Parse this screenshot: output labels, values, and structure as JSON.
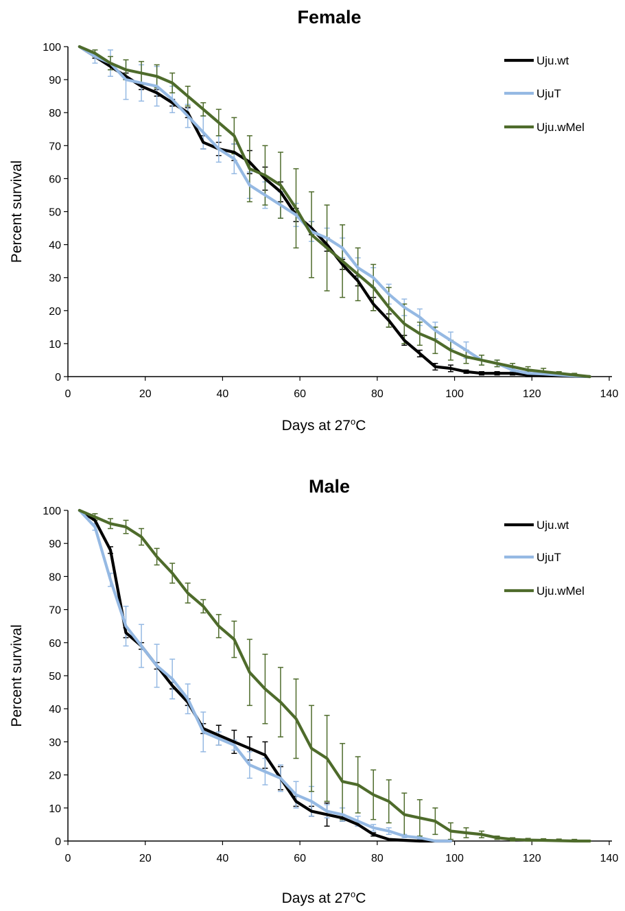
{
  "chart_data": [
    {
      "type": "line",
      "title": "Female",
      "xlabel": "Days at 27",
      "xlabel_sup": "o",
      "xlabel_tail": "C",
      "ylabel": "Percent survival",
      "xlim": [
        0,
        140
      ],
      "ylim": [
        0,
        100
      ],
      "x_ticks": [
        0,
        20,
        40,
        60,
        80,
        100,
        120,
        140
      ],
      "y_ticks": [
        0,
        10,
        20,
        30,
        40,
        50,
        60,
        70,
        80,
        90,
        100
      ],
      "grid": false,
      "legend_position": "top-right",
      "series": [
        {
          "name": "Uju.wt",
          "color": "#000000",
          "x": [
            3,
            7,
            11,
            15,
            19,
            23,
            27,
            31,
            35,
            39,
            43,
            47,
            51,
            55,
            59,
            63,
            67,
            71,
            75,
            79,
            83,
            87,
            91,
            95,
            99,
            103,
            107,
            111,
            115,
            119,
            123,
            127,
            131,
            135
          ],
          "y": [
            100,
            97,
            94,
            91,
            88,
            86,
            83,
            80,
            71,
            69,
            68,
            65,
            60,
            56,
            49,
            45,
            40,
            34,
            29,
            22,
            17,
            11,
            7,
            3,
            2.5,
            1.5,
            1,
            1,
            1,
            0.5,
            0.3,
            0.2,
            0.1,
            0
          ],
          "err": [
            0,
            0.5,
            1,
            1,
            1,
            1,
            1,
            1.5,
            2,
            2,
            2.5,
            3.5,
            3.5,
            3,
            2,
            2,
            2,
            1.5,
            1.5,
            2,
            2,
            1.5,
            1,
            1,
            1,
            0.5,
            0.5,
            0.5,
            0.5,
            0.5,
            0,
            0,
            0,
            0
          ]
        },
        {
          "name": "UjuT",
          "color": "#95b9e3",
          "x": [
            3,
            7,
            11,
            15,
            19,
            23,
            27,
            31,
            35,
            39,
            43,
            47,
            51,
            55,
            59,
            63,
            67,
            71,
            75,
            79,
            83,
            87,
            91,
            95,
            99,
            103,
            107,
            111,
            115,
            119,
            123,
            127,
            131,
            135
          ],
          "y": [
            100,
            97,
            95,
            90,
            89,
            88,
            84,
            79,
            74,
            69,
            66,
            58,
            55,
            52,
            49,
            44,
            42,
            39,
            33,
            30,
            25,
            21,
            18,
            14,
            11,
            8,
            5,
            4,
            2,
            1,
            0.8,
            0.5,
            0.2,
            0
          ],
          "err": [
            0,
            2,
            4,
            6,
            5.5,
            6,
            4,
            3.5,
            5,
            4,
            4.5,
            4,
            4,
            4,
            3.5,
            3,
            3,
            3,
            3,
            3,
            3,
            2.5,
            2.5,
            2.5,
            2.5,
            2.5,
            1.5,
            1,
            0.5,
            0.5,
            0,
            0,
            0,
            0
          ]
        },
        {
          "name": "Uju.wMel",
          "color": "#4e6b2b",
          "x": [
            3,
            7,
            11,
            15,
            19,
            23,
            27,
            31,
            35,
            39,
            43,
            47,
            51,
            55,
            59,
            63,
            67,
            71,
            75,
            79,
            83,
            87,
            91,
            95,
            99,
            103,
            107,
            111,
            115,
            119,
            123,
            127,
            131,
            135
          ],
          "y": [
            100,
            98,
            95,
            93,
            92,
            91,
            89,
            85,
            81,
            77,
            73,
            63,
            61,
            58,
            51,
            43,
            39,
            35,
            31,
            27,
            21,
            16,
            13,
            11,
            8,
            6,
            5,
            4,
            3,
            2,
            1.5,
            1,
            0.5,
            0
          ],
          "err": [
            0,
            1,
            2,
            3,
            3.5,
            3.5,
            3,
            3,
            2,
            4,
            5.5,
            10,
            9,
            10,
            12,
            13,
            13,
            11,
            8,
            7,
            6,
            6,
            3.5,
            4,
            3,
            2,
            1.5,
            1,
            1,
            1,
            1,
            0.5,
            0.5,
            0
          ]
        }
      ]
    },
    {
      "type": "line",
      "title": "Male",
      "xlabel": "Days at 27",
      "xlabel_sup": "o",
      "xlabel_tail": "C",
      "ylabel": "Percent survival",
      "xlim": [
        0,
        140
      ],
      "ylim": [
        0,
        100
      ],
      "x_ticks": [
        0,
        20,
        40,
        60,
        80,
        100,
        120,
        140
      ],
      "y_ticks": [
        0,
        10,
        20,
        30,
        40,
        50,
        60,
        70,
        80,
        90,
        100
      ],
      "grid": false,
      "legend_position": "top-right",
      "series": [
        {
          "name": "Uju.wt",
          "color": "#000000",
          "x": [
            3,
            7,
            11,
            15,
            19,
            23,
            27,
            31,
            35,
            39,
            43,
            47,
            51,
            55,
            59,
            63,
            67,
            71,
            75,
            79,
            83,
            87,
            91,
            95,
            99
          ],
          "y": [
            100,
            97,
            88,
            63,
            59,
            53,
            47,
            42,
            34,
            32,
            30,
            28,
            26,
            19,
            12,
            9,
            8,
            7,
            5,
            2,
            0.5,
            0.2,
            0,
            0,
            0
          ],
          "err": [
            0,
            1,
            1,
            1.5,
            1,
            1,
            1,
            1,
            1.5,
            3,
            3.5,
            3.5,
            4,
            3.5,
            1.5,
            1.5,
            3.5,
            1,
            0.5,
            0.5,
            0,
            0,
            0,
            0,
            0
          ]
        },
        {
          "name": "UjuT",
          "color": "#95b9e3",
          "x": [
            3,
            7,
            11,
            15,
            19,
            23,
            27,
            31,
            35,
            39,
            43,
            47,
            51,
            55,
            59,
            63,
            67,
            71,
            75,
            79,
            83,
            87,
            91,
            95,
            99
          ],
          "y": [
            100,
            95,
            79,
            65,
            59,
            53,
            49,
            43,
            33,
            31,
            29,
            23,
            21,
            19,
            14,
            12,
            9,
            8,
            6,
            4,
            3,
            1.5,
            1,
            0,
            0
          ],
          "err": [
            0,
            1,
            2,
            6,
            6.5,
            6.5,
            6,
            4.5,
            6,
            2,
            1.5,
            4,
            4,
            4,
            4,
            4.5,
            2,
            2,
            1.5,
            1,
            1,
            0.5,
            0.5,
            0,
            0
          ]
        },
        {
          "name": "Uju.wMel",
          "color": "#4e6b2b",
          "x": [
            3,
            7,
            11,
            15,
            19,
            23,
            27,
            31,
            35,
            39,
            43,
            47,
            51,
            55,
            59,
            63,
            67,
            71,
            75,
            79,
            83,
            87,
            91,
            95,
            99,
            103,
            107,
            111,
            115,
            119,
            123,
            127,
            131,
            135
          ],
          "y": [
            100,
            98,
            96,
            95,
            92,
            86,
            81,
            75,
            71,
            65,
            61,
            51,
            46,
            42,
            37,
            28,
            25,
            18,
            17,
            14,
            12,
            8,
            7,
            6,
            3,
            2.5,
            2,
            1,
            0.5,
            0.3,
            0.2,
            0.1,
            0,
            0
          ],
          "err": [
            0,
            1,
            1.5,
            2,
            2.5,
            2.5,
            3,
            3,
            2,
            3.5,
            5.5,
            10,
            10.5,
            10.5,
            12,
            13,
            13,
            11.5,
            8.5,
            7.5,
            6.5,
            6.5,
            5.5,
            4,
            2.5,
            1.5,
            1,
            0.5,
            0.5,
            0.5,
            0.5,
            0.5,
            0.5,
            0
          ]
        }
      ]
    }
  ]
}
